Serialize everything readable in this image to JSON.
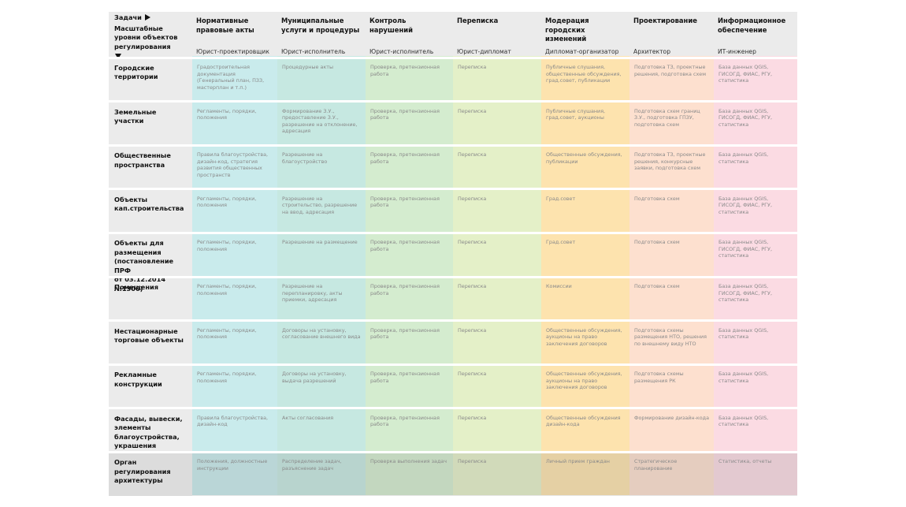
{
  "corner": {
    "tasks_label": "Задачи",
    "levels_label": "Масштабные\nуровни объектов\nрегулирования"
  },
  "columns": [
    {
      "title": "Нормативные\nправовые акты",
      "role": "Юрист-проектировщик",
      "color": "#c9ebec"
    },
    {
      "title": "Муниципальные\nуслуги и процедуры",
      "role": "Юрист-исполнитель",
      "color": "#c6e8e1"
    },
    {
      "title": "Контроль нарушений",
      "role": "Юрист-исполнитель",
      "color": "#d4eccf"
    },
    {
      "title": "Переписка",
      "role": "Юрист-дипломат",
      "color": "#e4f0c8"
    },
    {
      "title": "Модерация\nгородских изменений",
      "role": "Дипломат-организатор",
      "color": "#fde3ae"
    },
    {
      "title": "Проектирование",
      "role": "Архитектор",
      "color": "#fde0cf"
    },
    {
      "title": "Информационное\nобеспечение",
      "role": "ИТ-инженер",
      "color": "#fbdbe3"
    }
  ],
  "colors": {
    "header": "#ebebeb",
    "label_col": "#ebebeb",
    "org_row": "#dcdcdc"
  },
  "rows": [
    {
      "label": "Городские\nтерритории",
      "cells": [
        "Градостроительная документация (Генеральный план, ПЗЗ, мастерплан и т.п.)",
        "Процедурные акты",
        "Проверка, претензионная работа",
        "Переписка",
        "Публичные слушания, общественные обсуждения, град.совет, публикации",
        "Подготовка ТЗ, проектные решения, подготовка схем",
        "База данных QGIS, ГИСОГД, ФИАС, РГУ, статистика"
      ]
    },
    {
      "label": "Земельные\nучастки",
      "cells": [
        "Регламенты, порядки, положения",
        "Формирование З.У., предоставление З.У., разрешение на отклонение, адресация",
        "Проверка, претензионная работа",
        "Переписка",
        "Публичные слушания, град.совет, аукционы",
        "Подготовка схем границ З.У., подготовка ГПЗУ, подготовка схем",
        "База данных QGIS, ГИСОГД, ФИАС, РГУ, статистика"
      ]
    },
    {
      "label": "Общественные\nпространства",
      "cells": [
        "Правила благоустройства, дизайн-код, стратегия развития общественных пространств",
        "Разрешение на благоустройство",
        "Проверка, претензионная работа",
        "Переписка",
        "Общественные обсуждения, публикации",
        "Подготовка ТЗ, проектные решения, конкурсные заявки, подготовка схем",
        "База данных QGIS, статистика"
      ]
    },
    {
      "label": "Объекты\nкап.строительства",
      "cells": [
        "Регламенты, порядки, положения",
        "Разрешение на строительство, разрешение на ввод, адресация",
        "Проверка, претензионная работа",
        "Переписка",
        "Град.совет",
        "Подготовка схем",
        "База данных QGIS, ГИСОГД, ФИАС, РГУ, статистика"
      ]
    },
    {
      "label": "Объекты для\nразмещения\n(постановление ПРФ\nот 03.12.2014 №1300)",
      "cells": [
        "Регламенты, порядки, положения",
        "Разрешение на размещение",
        "Проверка, претензионная работа",
        "Переписка",
        "Град.совет",
        "Подготовка схем",
        "База данных QGIS, ГИСОГД, ФИАС, РГУ, статистика"
      ]
    },
    {
      "label": "Помещения",
      "cells": [
        "Регламенты, порядки, положения",
        "Разрешение на перепланировку, акты приемки, адресация",
        "Проверка, претензионная работа",
        "Переписка",
        "Комиссии",
        "Подготовка схем",
        "База данных QGIS, ГИСОГД, ФИАС, РГУ, статистика"
      ]
    },
    {
      "label": "Нестационарные\nторговые объекты",
      "cells": [
        "Регламенты, порядки, положения",
        "Договоры на установку, согласование внешнего вида",
        "Проверка, претензионная работа",
        "Переписка",
        "Общественные обсуждения, аукционы на право заключения договоров",
        "Подготовка схемы размещения НТО, решения по внешнему виду НТО",
        "База данных QGIS, статистика"
      ]
    },
    {
      "label": "Рекламные\nконструкции",
      "cells": [
        "Регламенты, порядки, положения",
        "Договоры на установку, выдача разрешений",
        "Проверка, претензионная работа",
        "Переписка",
        "Общественные обсуждения, аукционы на право заключения договоров",
        "Подготовка схемы размещения РК",
        "База данных QGIS, статистика"
      ]
    },
    {
      "label": "Фасады, вывески,\nэлементы\nблагоустройства,\nукрашения",
      "cells": [
        "Правила благоустройства, дизайн-код",
        "Акты согласования",
        "Проверка, претензионная работа",
        "Переписка",
        "Общественные обсуждения дизайн-кода",
        "Формирование дизайн-кода",
        "База данных QGIS, статистика"
      ]
    },
    {
      "label": "Орган\nрегулирования\nархитектуры",
      "cells": [
        "Положения, должностные инструкции",
        "Распределение задач, разъяснение задач",
        "Проверка выполнения задач",
        "Переписка",
        "Личный прием граждан",
        "Стратегическое планирование",
        "Статистика, отчеты"
      ]
    }
  ]
}
